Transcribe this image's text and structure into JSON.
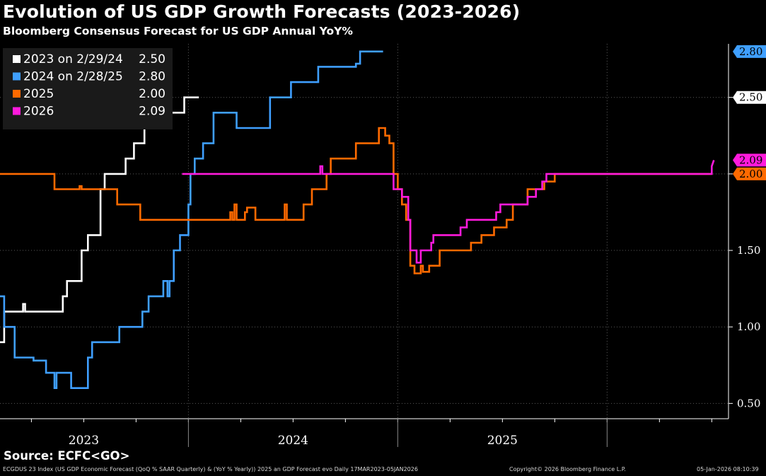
{
  "title": "Evolution of US GDP Growth Forecasts (2023-2026)",
  "subtitle": "Bloomberg Consensus Forecast for US GDP Annual YoY%",
  "source": "Source: ECFC<GO>",
  "footer": {
    "left": "ECGDUS 23 Index (US GDP Economic Forecast (QoQ % SAAR Quarterly) & (YoY % Yearly)) 2025 an GDP Forecast evo Daily 17MAR2023-05JAN2026",
    "middle": "Copyright© 2026 Bloomberg Finance L.P.",
    "right": "05-Jan-2026 08:10:39"
  },
  "chart_data": {
    "type": "line",
    "x_unit": "date (decimal year)",
    "x_range": [
      2022.6,
      2026.08
    ],
    "ylim": [
      0.4,
      2.85
    ],
    "y_ticks": [
      0.5,
      1.0,
      1.5,
      2.0,
      2.5
    ],
    "x_labels": [
      {
        "label": "2023",
        "at": 2023.0
      },
      {
        "label": "2024",
        "at": 2024.0
      },
      {
        "label": "2025",
        "at": 2025.0
      }
    ],
    "x_minor_ticks": [
      2022.75,
      2023.0,
      2023.25,
      2023.5,
      2023.75,
      2024.0,
      2024.25,
      2024.5,
      2024.75,
      2025.0,
      2025.25,
      2025.5,
      2025.75,
      2026.0
    ],
    "x_separators": [
      2023.5,
      2024.5,
      2025.5
    ],
    "grid": true,
    "legend_position": "top-left",
    "series": [
      {
        "name": "2023 on 2/29/24",
        "color": "#ffffff",
        "last_value": "2.50",
        "points": [
          [
            2022.6,
            0.9
          ],
          [
            2022.62,
            0.9
          ],
          [
            2022.62,
            1.1
          ],
          [
            2022.71,
            1.1
          ],
          [
            2022.71,
            1.15
          ],
          [
            2022.72,
            1.15
          ],
          [
            2022.72,
            1.1
          ],
          [
            2022.9,
            1.1
          ],
          [
            2022.9,
            1.2
          ],
          [
            2022.92,
            1.2
          ],
          [
            2022.92,
            1.3
          ],
          [
            2022.99,
            1.3
          ],
          [
            2022.99,
            1.5
          ],
          [
            2023.02,
            1.5
          ],
          [
            2023.02,
            1.6
          ],
          [
            2023.08,
            1.6
          ],
          [
            2023.08,
            1.9
          ],
          [
            2023.1,
            1.9
          ],
          [
            2023.1,
            2.0
          ],
          [
            2023.2,
            2.0
          ],
          [
            2023.2,
            2.1
          ],
          [
            2023.24,
            2.1
          ],
          [
            2023.24,
            2.2
          ],
          [
            2023.29,
            2.2
          ],
          [
            2023.29,
            2.3
          ],
          [
            2023.35,
            2.3
          ],
          [
            2023.35,
            2.4
          ],
          [
            2023.48,
            2.4
          ],
          [
            2023.48,
            2.5
          ],
          [
            2023.55,
            2.5
          ]
        ]
      },
      {
        "name": "2024 on 2/28/25",
        "color": "#3f9fff",
        "last_value": "2.80",
        "points": [
          [
            2022.6,
            1.2
          ],
          [
            2022.62,
            1.2
          ],
          [
            2022.62,
            1.0
          ],
          [
            2022.67,
            1.0
          ],
          [
            2022.67,
            0.8
          ],
          [
            2022.76,
            0.8
          ],
          [
            2022.76,
            0.78
          ],
          [
            2022.82,
            0.78
          ],
          [
            2022.82,
            0.7
          ],
          [
            2022.86,
            0.7
          ],
          [
            2022.86,
            0.6
          ],
          [
            2022.87,
            0.6
          ],
          [
            2022.87,
            0.7
          ],
          [
            2022.94,
            0.7
          ],
          [
            2022.94,
            0.6
          ],
          [
            2023.02,
            0.6
          ],
          [
            2023.02,
            0.8
          ],
          [
            2023.04,
            0.8
          ],
          [
            2023.04,
            0.9
          ],
          [
            2023.17,
            0.9
          ],
          [
            2023.17,
            1.0
          ],
          [
            2023.28,
            1.0
          ],
          [
            2023.28,
            1.1
          ],
          [
            2023.31,
            1.1
          ],
          [
            2023.31,
            1.2
          ],
          [
            2023.38,
            1.2
          ],
          [
            2023.38,
            1.3
          ],
          [
            2023.4,
            1.3
          ],
          [
            2023.4,
            1.2
          ],
          [
            2023.41,
            1.2
          ],
          [
            2023.41,
            1.3
          ],
          [
            2023.43,
            1.3
          ],
          [
            2023.43,
            1.5
          ],
          [
            2023.46,
            1.5
          ],
          [
            2023.46,
            1.6
          ],
          [
            2023.5,
            1.6
          ],
          [
            2023.5,
            1.8
          ],
          [
            2023.51,
            1.8
          ],
          [
            2023.51,
            2.0
          ],
          [
            2023.53,
            2.0
          ],
          [
            2023.53,
            2.1
          ],
          [
            2023.57,
            2.1
          ],
          [
            2023.57,
            2.2
          ],
          [
            2023.62,
            2.2
          ],
          [
            2023.62,
            2.4
          ],
          [
            2023.73,
            2.4
          ],
          [
            2023.73,
            2.3
          ],
          [
            2023.89,
            2.3
          ],
          [
            2023.89,
            2.5
          ],
          [
            2023.99,
            2.5
          ],
          [
            2023.99,
            2.6
          ],
          [
            2024.12,
            2.6
          ],
          [
            2024.12,
            2.7
          ],
          [
            2024.3,
            2.7
          ],
          [
            2024.3,
            2.72
          ],
          [
            2024.32,
            2.72
          ],
          [
            2024.32,
            2.8
          ],
          [
            2024.43,
            2.8
          ]
        ]
      },
      {
        "name": "2025",
        "color": "#ff6a00",
        "last_value": "2.00",
        "points": [
          [
            2022.6,
            2.0
          ],
          [
            2022.86,
            2.0
          ],
          [
            2022.86,
            1.9
          ],
          [
            2022.98,
            1.9
          ],
          [
            2022.98,
            1.92
          ],
          [
            2022.99,
            1.92
          ],
          [
            2022.99,
            1.9
          ],
          [
            2023.16,
            1.9
          ],
          [
            2023.16,
            1.8
          ],
          [
            2023.27,
            1.8
          ],
          [
            2023.27,
            1.7
          ],
          [
            2023.7,
            1.7
          ],
          [
            2023.7,
            1.75
          ],
          [
            2023.71,
            1.75
          ],
          [
            2023.71,
            1.7
          ],
          [
            2023.72,
            1.7
          ],
          [
            2023.72,
            1.8
          ],
          [
            2023.73,
            1.8
          ],
          [
            2023.73,
            1.7
          ],
          [
            2023.77,
            1.7
          ],
          [
            2023.77,
            1.75
          ],
          [
            2023.78,
            1.75
          ],
          [
            2023.78,
            1.78
          ],
          [
            2023.82,
            1.78
          ],
          [
            2023.82,
            1.7
          ],
          [
            2023.96,
            1.7
          ],
          [
            2023.96,
            1.8
          ],
          [
            2023.97,
            1.8
          ],
          [
            2023.97,
            1.7
          ],
          [
            2024.05,
            1.7
          ],
          [
            2024.05,
            1.8
          ],
          [
            2024.09,
            1.8
          ],
          [
            2024.09,
            1.9
          ],
          [
            2024.16,
            1.9
          ],
          [
            2024.16,
            2.0
          ],
          [
            2024.18,
            2.0
          ],
          [
            2024.18,
            2.1
          ],
          [
            2024.3,
            2.1
          ],
          [
            2024.3,
            2.2
          ],
          [
            2024.41,
            2.2
          ],
          [
            2024.41,
            2.3
          ],
          [
            2024.44,
            2.3
          ],
          [
            2024.44,
            2.25
          ],
          [
            2024.46,
            2.25
          ],
          [
            2024.46,
            2.2
          ],
          [
            2024.48,
            2.2
          ],
          [
            2024.48,
            2.0
          ],
          [
            2024.5,
            2.0
          ],
          [
            2024.5,
            1.9
          ],
          [
            2024.52,
            1.9
          ],
          [
            2024.52,
            1.8
          ],
          [
            2024.54,
            1.8
          ],
          [
            2024.54,
            1.7
          ],
          [
            2024.56,
            1.7
          ],
          [
            2024.56,
            1.4
          ],
          [
            2024.58,
            1.4
          ],
          [
            2024.58,
            1.35
          ],
          [
            2024.61,
            1.35
          ],
          [
            2024.61,
            1.4
          ],
          [
            2024.62,
            1.4
          ],
          [
            2024.62,
            1.36
          ],
          [
            2024.65,
            1.36
          ],
          [
            2024.65,
            1.4
          ],
          [
            2024.7,
            1.4
          ],
          [
            2024.7,
            1.5
          ],
          [
            2024.85,
            1.5
          ],
          [
            2024.85,
            1.55
          ],
          [
            2024.9,
            1.55
          ],
          [
            2024.9,
            1.6
          ],
          [
            2024.96,
            1.6
          ],
          [
            2024.96,
            1.65
          ],
          [
            2025.02,
            1.65
          ],
          [
            2025.02,
            1.7
          ],
          [
            2025.05,
            1.7
          ],
          [
            2025.05,
            1.8
          ],
          [
            2025.12,
            1.8
          ],
          [
            2025.12,
            1.9
          ],
          [
            2025.2,
            1.9
          ],
          [
            2025.2,
            1.95
          ],
          [
            2025.25,
            1.95
          ],
          [
            2025.25,
            2.0
          ],
          [
            2026.0,
            2.0
          ]
        ]
      },
      {
        "name": "2026",
        "color": "#ff1adc",
        "last_value": "2.09",
        "points": [
          [
            2023.47,
            2.0
          ],
          [
            2024.13,
            2.0
          ],
          [
            2024.13,
            2.05
          ],
          [
            2024.14,
            2.05
          ],
          [
            2024.14,
            2.0
          ],
          [
            2024.48,
            2.0
          ],
          [
            2024.48,
            1.9
          ],
          [
            2024.52,
            1.9
          ],
          [
            2024.52,
            1.85
          ],
          [
            2024.55,
            1.85
          ],
          [
            2024.55,
            1.7
          ],
          [
            2024.56,
            1.7
          ],
          [
            2024.56,
            1.5
          ],
          [
            2024.59,
            1.5
          ],
          [
            2024.59,
            1.42
          ],
          [
            2024.61,
            1.42
          ],
          [
            2024.61,
            1.5
          ],
          [
            2024.66,
            1.5
          ],
          [
            2024.66,
            1.55
          ],
          [
            2024.67,
            1.55
          ],
          [
            2024.67,
            1.6
          ],
          [
            2024.8,
            1.6
          ],
          [
            2024.8,
            1.65
          ],
          [
            2024.83,
            1.65
          ],
          [
            2024.83,
            1.7
          ],
          [
            2024.97,
            1.7
          ],
          [
            2024.97,
            1.75
          ],
          [
            2024.99,
            1.75
          ],
          [
            2024.99,
            1.8
          ],
          [
            2025.12,
            1.8
          ],
          [
            2025.12,
            1.85
          ],
          [
            2025.16,
            1.85
          ],
          [
            2025.16,
            1.9
          ],
          [
            2025.19,
            1.9
          ],
          [
            2025.19,
            1.95
          ],
          [
            2025.21,
            1.95
          ],
          [
            2025.21,
            2.0
          ],
          [
            2026.0,
            2.0
          ],
          [
            2026.0,
            2.05
          ],
          [
            2026.01,
            2.09
          ]
        ]
      }
    ]
  }
}
